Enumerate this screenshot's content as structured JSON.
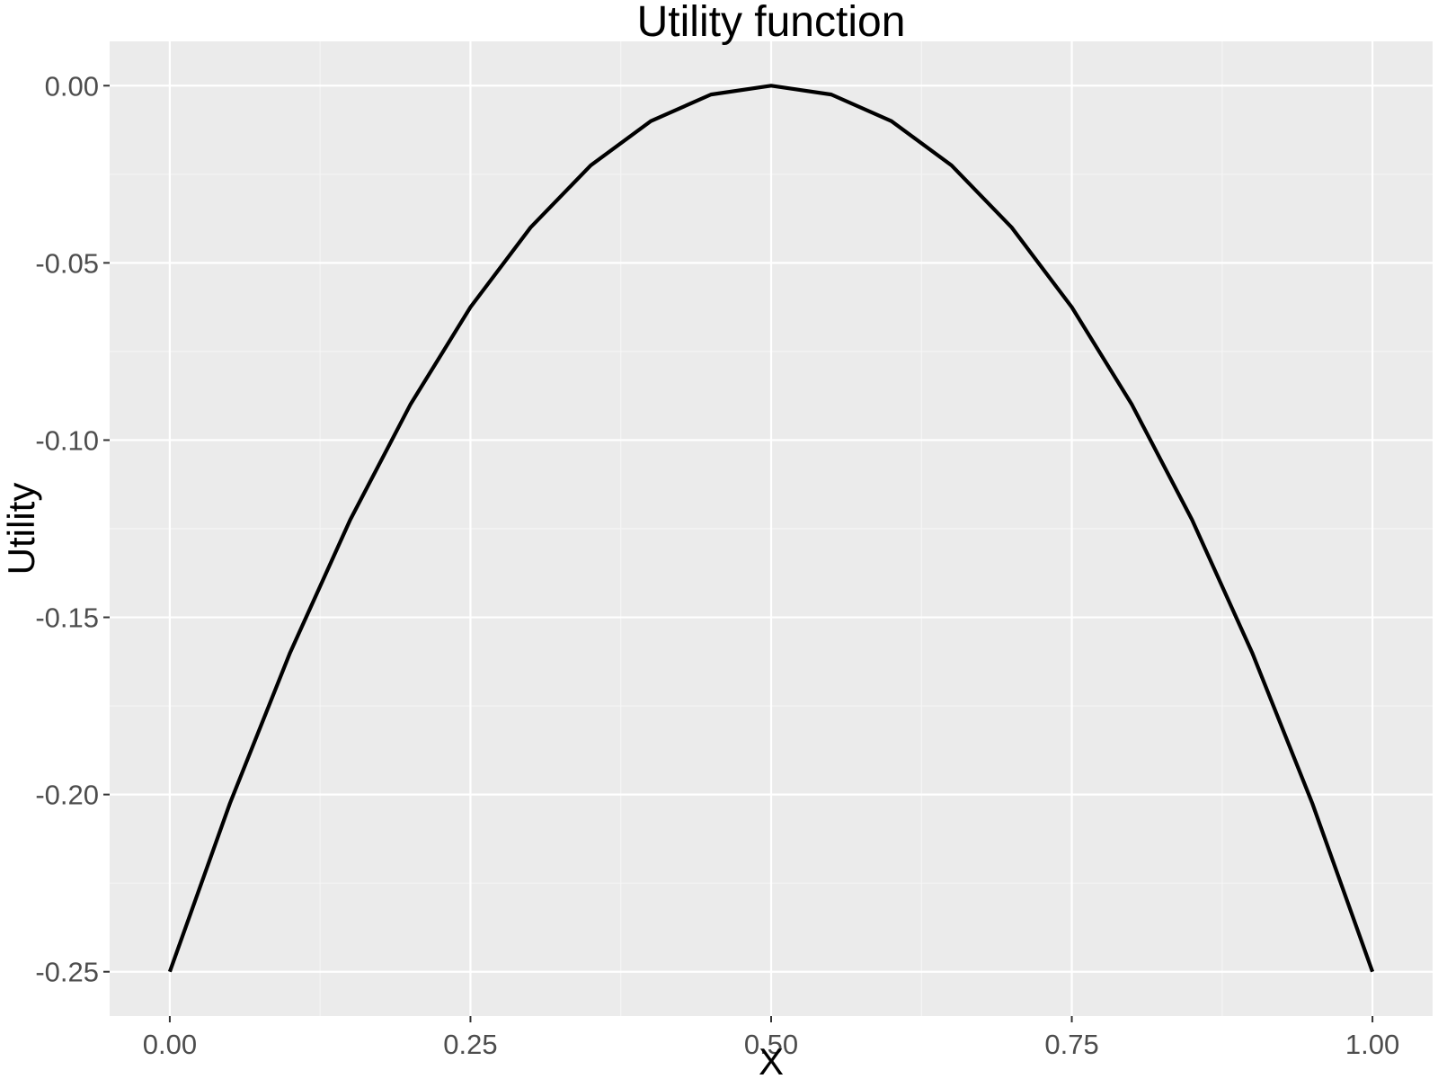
{
  "chart_data": {
    "type": "line",
    "title": "Utility function",
    "xlabel": "X",
    "ylabel": "Utility",
    "xlim": [
      -0.05,
      1.05
    ],
    "ylim": [
      -0.2625,
      0.0125
    ],
    "x_ticks": [
      0.0,
      0.25,
      0.5,
      0.75,
      1.0
    ],
    "x_tick_labels": [
      "0.00",
      "0.25",
      "0.50",
      "0.75",
      "1.00"
    ],
    "y_ticks": [
      0.0,
      -0.05,
      -0.1,
      -0.15,
      -0.2,
      -0.25
    ],
    "y_tick_labels": [
      "0.00",
      "-0.05",
      "-0.10",
      "-0.15",
      "-0.20",
      "-0.25"
    ],
    "grid": true,
    "series": [
      {
        "color": "#000000",
        "x": [
          0.0,
          0.05,
          0.1,
          0.15,
          0.2,
          0.25,
          0.3,
          0.35,
          0.4,
          0.45,
          0.5,
          0.55,
          0.6,
          0.65,
          0.7,
          0.75,
          0.8,
          0.85,
          0.9,
          0.95,
          1.0
        ],
        "values": [
          -0.25,
          -0.2025,
          -0.16,
          -0.1225,
          -0.09,
          -0.0625,
          -0.04,
          -0.0225,
          -0.01,
          -0.0025,
          0.0,
          -0.0025,
          -0.01,
          -0.0225,
          -0.04,
          -0.0625,
          -0.09,
          -0.1225,
          -0.16,
          -0.2025,
          -0.25
        ]
      }
    ],
    "colors": {
      "panel": "#ebebeb",
      "grid_major": "#ffffff",
      "grid_minor": "#f5f5f5",
      "tick": "#333333"
    }
  }
}
